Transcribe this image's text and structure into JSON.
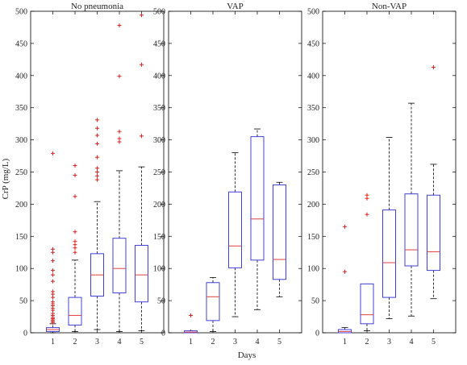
{
  "chart_data": {
    "type": "box",
    "ylabel": "CrP (mg/L)",
    "xlabel": "Days",
    "ylim": [
      0,
      500
    ],
    "yticks": [
      0,
      50,
      100,
      150,
      200,
      250,
      300,
      350,
      400,
      450,
      500
    ],
    "categories": [
      "1",
      "2",
      "3",
      "4",
      "5"
    ],
    "colors": {
      "box": "#4040d8",
      "median": "#e04040",
      "outlier": "#e02020",
      "whisker": "#000000"
    },
    "panels": [
      {
        "title": "No pneumonia",
        "boxes": [
          {
            "day": "1",
            "min": 0,
            "q1": 2,
            "median": 5,
            "q3": 8,
            "max": 14,
            "outliers": [
              279,
              130,
              125,
              112,
              97,
              90,
              80,
              64,
              60,
              55,
              48,
              45,
              42,
              38,
              35,
              30,
              27,
              24,
              22,
              20,
              18,
              16
            ]
          },
          {
            "day": "2",
            "min": 2,
            "q1": 12,
            "median": 27,
            "q3": 55,
            "max": 113,
            "outliers": [
              260,
              245,
              212,
              157,
              142,
              137,
              132,
              125
            ]
          },
          {
            "day": "3",
            "min": 5,
            "q1": 57,
            "median": 90,
            "q3": 123,
            "max": 204,
            "outliers": [
              331,
              318,
              307,
              294,
              273,
              256,
              250,
              244,
              238
            ]
          },
          {
            "day": "4",
            "min": 2,
            "q1": 62,
            "median": 100,
            "q3": 147,
            "max": 252,
            "outliers": [
              478,
              399,
              313,
              302,
              297
            ]
          },
          {
            "day": "5",
            "min": 3,
            "q1": 48,
            "median": 90,
            "q3": 136,
            "max": 258,
            "outliers": [
              494,
              417,
              306
            ]
          }
        ]
      },
      {
        "title": "VAP",
        "boxes": [
          {
            "day": "1",
            "min": 0,
            "q1": 0,
            "median": 1,
            "q3": 3,
            "max": 3,
            "outliers": [
              27
            ]
          },
          {
            "day": "2",
            "min": 2,
            "q1": 19,
            "median": 56,
            "q3": 78,
            "max": 86,
            "outliers": []
          },
          {
            "day": "3",
            "min": 25,
            "q1": 101,
            "median": 135,
            "q3": 219,
            "max": 280,
            "outliers": []
          },
          {
            "day": "4",
            "min": 36,
            "q1": 113,
            "median": 177,
            "q3": 305,
            "max": 317,
            "outliers": []
          },
          {
            "day": "5",
            "min": 56,
            "q1": 83,
            "median": 114,
            "q3": 230,
            "max": 234,
            "outliers": []
          }
        ]
      },
      {
        "title": "Non-VAP",
        "boxes": [
          {
            "day": "1",
            "min": 0,
            "q1": 0,
            "median": 2,
            "q3": 5,
            "max": 8,
            "outliers": [
              165,
              95
            ]
          },
          {
            "day": "2",
            "min": 3,
            "q1": 14,
            "median": 28,
            "q3": 76,
            "max": 76,
            "outliers": [
              214,
              209,
              184
            ]
          },
          {
            "day": "3",
            "min": 22,
            "q1": 55,
            "median": 109,
            "q3": 191,
            "max": 304,
            "outliers": []
          },
          {
            "day": "4",
            "min": 26,
            "q1": 104,
            "median": 129,
            "q3": 216,
            "max": 357,
            "outliers": []
          },
          {
            "day": "5",
            "min": 53,
            "q1": 97,
            "median": 126,
            "q3": 214,
            "max": 262,
            "outliers": [
              413
            ]
          }
        ]
      }
    ]
  }
}
